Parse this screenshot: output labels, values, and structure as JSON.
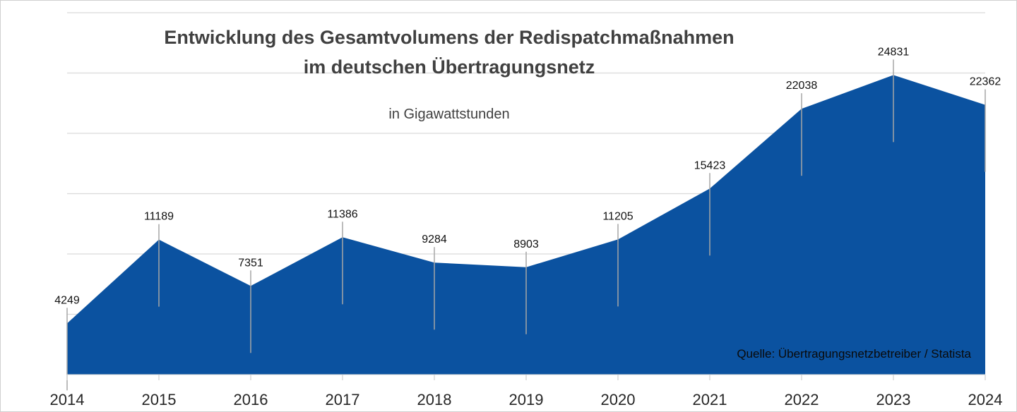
{
  "chart_data": {
    "type": "area",
    "title_lines": [
      "Entwicklung des Gesamtvolumens der Redispatchmaßnahmen",
      "im deutschen Übertragungsnetz"
    ],
    "subtitle": "in Gigawattstunden",
    "categories": [
      "2014",
      "2015",
      "2016",
      "2017",
      "2018",
      "2019",
      "2020",
      "2021",
      "2022",
      "2023",
      "2024"
    ],
    "series": [
      {
        "name": "Redispatch-Gesamtvolumen (GWh)",
        "values": [
          4249,
          11189,
          7351,
          11386,
          9284,
          8903,
          11205,
          15423,
          22038,
          24831,
          22362
        ],
        "color": "#0b52a0"
      }
    ],
    "data_labels": [
      "4249",
      "11189",
      "7351",
      "11386",
      "9284",
      "8903",
      "11205",
      "15423",
      "22038",
      "24831",
      "22362"
    ],
    "xlabel": "",
    "ylabel": "",
    "ylim": [
      0,
      30000
    ],
    "ygrid_step": 5000,
    "grid": true,
    "y_tick_labels_visible": false,
    "legend": "none",
    "source": "Quelle: Übertragungsnetzbetreiber / Statista",
    "colors": {
      "area": "#0b52a0",
      "grid": "#d9d9d9",
      "leader": "#a6a6a6",
      "title": "#404040"
    }
  }
}
